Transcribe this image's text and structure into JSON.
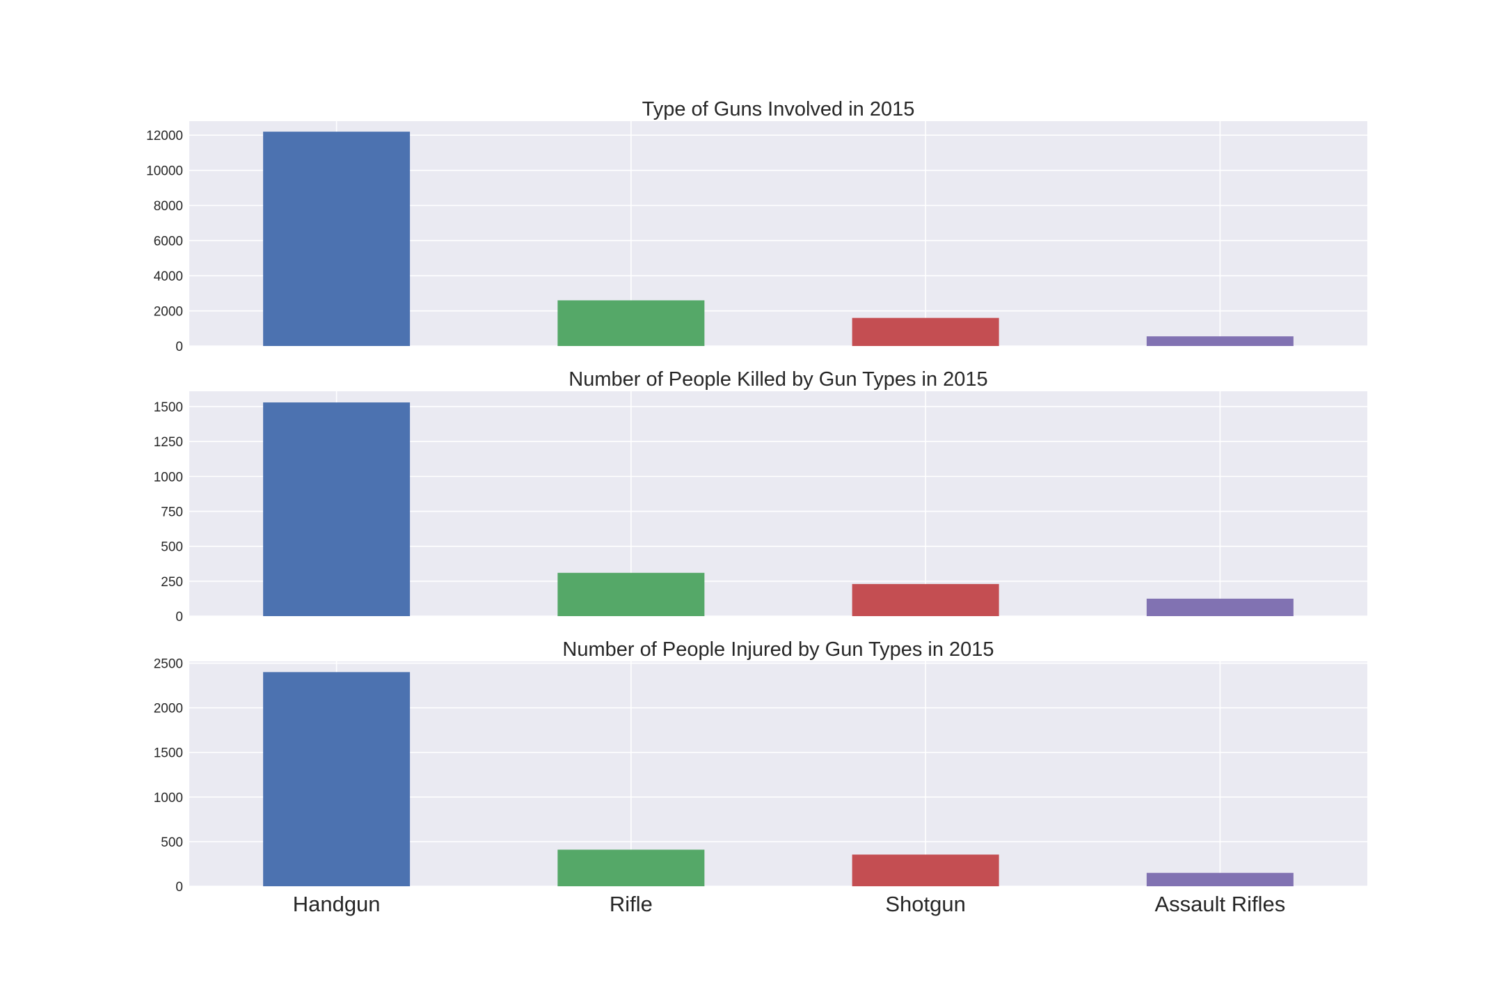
{
  "chart_data": [
    {
      "type": "bar",
      "title": "Type of Guns Involved in 2015",
      "categories": [
        "Handgun",
        "Rifle",
        "Shotgun",
        "Assault Rifles"
      ],
      "values": [
        12200,
        2600,
        1600,
        550
      ],
      "yticks": [
        0,
        2000,
        4000,
        6000,
        8000,
        10000,
        12000
      ],
      "ylim": [
        0,
        12800
      ],
      "xlabel": "",
      "ylabel": "",
      "grid": true,
      "show_xticklabels": false
    },
    {
      "type": "bar",
      "title": "Number of People Killed by Gun Types in 2015",
      "categories": [
        "Handgun",
        "Rifle",
        "Shotgun",
        "Assault Rifles"
      ],
      "values": [
        1530,
        310,
        230,
        125
      ],
      "yticks": [
        0,
        250,
        500,
        750,
        1000,
        1250,
        1500
      ],
      "ylim": [
        0,
        1610
      ],
      "xlabel": "",
      "ylabel": "",
      "grid": true,
      "show_xticklabels": false
    },
    {
      "type": "bar",
      "title": "Number of People Injured by Gun Types in 2015",
      "categories": [
        "Handgun",
        "Rifle",
        "Shotgun",
        "Assault Rifles"
      ],
      "values": [
        2400,
        410,
        355,
        150
      ],
      "yticks": [
        0,
        500,
        1000,
        1500,
        2000,
        2500
      ],
      "ylim": [
        0,
        2520
      ],
      "xlabel": "",
      "ylabel": "",
      "grid": true,
      "show_xticklabels": true
    }
  ],
  "colors": {
    "background": "#ffffff",
    "plot_background": "#eaeaf2",
    "grid": "#ffffff",
    "text": "#262626",
    "bars": [
      "#4c72b0",
      "#55a868",
      "#c44e52",
      "#8172b2"
    ]
  }
}
